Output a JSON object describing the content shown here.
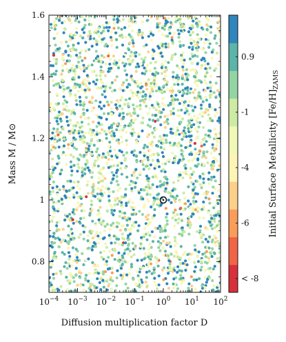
{
  "chart_data": {
    "type": "scatter",
    "title": "",
    "xlabel": "Diffusion multiplication factor D",
    "ylabel": "Mass M / M⊙",
    "x_scale": "log",
    "xlim": [
      0.0001,
      100
    ],
    "ylim": [
      0.7,
      1.6
    ],
    "x_ticks": [
      {
        "value": 0.0001,
        "base": "10",
        "exp": "−4"
      },
      {
        "value": 0.001,
        "base": "10",
        "exp": "−3"
      },
      {
        "value": 0.01,
        "base": "10",
        "exp": "−2"
      },
      {
        "value": 0.1,
        "base": "10",
        "exp": "−1"
      },
      {
        "value": 1,
        "base": "10",
        "exp": "0"
      },
      {
        "value": 10,
        "base": "10",
        "exp": "1"
      },
      {
        "value": 100,
        "base": "10",
        "exp": "2"
      }
    ],
    "y_ticks": [
      {
        "value": 0.8,
        "label": "0.8"
      },
      {
        "value": 1.0,
        "label": "1"
      },
      {
        "value": 1.2,
        "label": "1.2"
      },
      {
        "value": 1.4,
        "label": "1.4"
      },
      {
        "value": 1.6,
        "label": "1.6"
      }
    ],
    "colorbar": {
      "label": "Initial Surface Metallicity [Fe/H]ZAMS",
      "colors": [
        "#d7303c",
        "#ef6546",
        "#f99d59",
        "#fdd08a",
        "#fef5b5",
        "#f1f8b4",
        "#cdeba3",
        "#93d4a3",
        "#5bb5a9",
        "#2f86bc"
      ],
      "tick_labels": [
        "< -8",
        "-6",
        "-4",
        "-1",
        "0.9"
      ],
      "tick_bins": [
        0.5,
        2.5,
        4.5,
        6.5,
        8.5
      ]
    },
    "highlight_point": {
      "x": 1,
      "y": 1.0
    },
    "point_sampling": {
      "count": 2700,
      "seed": 7,
      "color_weights": [
        0.003,
        0.004,
        0.01,
        0.06,
        0.1,
        0.13,
        0.16,
        0.17,
        0.17,
        0.2
      ]
    }
  }
}
